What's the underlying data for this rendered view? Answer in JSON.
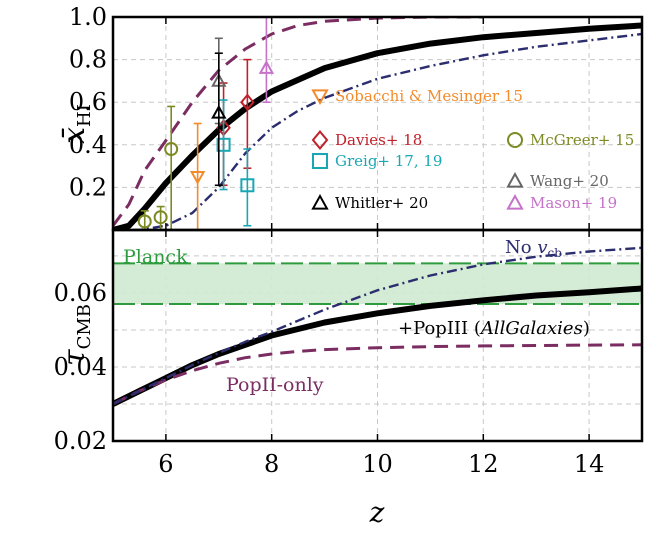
{
  "chart_data": [
    {
      "type": "line",
      "panel": "top",
      "ylabel": "x̄HI",
      "ylabel_main": "x̄",
      "ylabel_sub": "HI",
      "xlim": [
        5,
        15
      ],
      "ylim": [
        0,
        1.0
      ],
      "yticks": [
        0.2,
        0.4,
        0.6,
        0.8,
        1.0
      ],
      "ytick_labels": [
        "0.2",
        "0.4",
        "0.6",
        "0.8",
        "1.0"
      ],
      "xticks": [
        6,
        8,
        10,
        12,
        14
      ],
      "grid": true,
      "legend_position": "lower-right",
      "series": [
        {
          "style": "thick-solid",
          "color": "#000000",
          "x": [
            5.0,
            5.3,
            5.6,
            6.0,
            6.5,
            7.0,
            7.5,
            8.0,
            9.0,
            10.0,
            11.0,
            12.0,
            13.0,
            14.0,
            15.0
          ],
          "y": [
            0.0,
            0.02,
            0.1,
            0.22,
            0.35,
            0.47,
            0.57,
            0.65,
            0.76,
            0.83,
            0.875,
            0.905,
            0.925,
            0.945,
            0.96
          ]
        },
        {
          "style": "dashed",
          "color": "#7b2d62",
          "x": [
            5.0,
            5.3,
            5.6,
            6.0,
            6.5,
            7.0,
            7.5,
            8.0,
            8.5,
            9.0,
            10.0,
            11.0,
            12.0
          ],
          "y": [
            0.02,
            0.12,
            0.28,
            0.42,
            0.6,
            0.75,
            0.85,
            0.92,
            0.96,
            0.98,
            0.995,
            1.0,
            1.0
          ]
        },
        {
          "style": "dash-dot",
          "color": "#2b2d6e",
          "x": [
            5.0,
            5.5,
            6.0,
            6.5,
            7.0,
            7.5,
            8.0,
            8.5,
            9.0,
            10.0,
            11.0,
            12.0,
            13.0,
            14.0,
            15.0
          ],
          "y": [
            0.0,
            0.0,
            0.02,
            0.08,
            0.2,
            0.36,
            0.48,
            0.56,
            0.62,
            0.71,
            0.77,
            0.82,
            0.86,
            0.89,
            0.92
          ]
        }
      ],
      "observations": [
        {
          "label": "Sobacchi & Mesinger 15",
          "color": "#f28b2a",
          "marker": "triangle-down",
          "points": [
            {
              "x": 6.6,
              "y": 0.25,
              "lo": 0.0,
              "hi": 0.5
            }
          ]
        },
        {
          "label": "Davies+ 18",
          "color": "#c0202a",
          "marker": "diamond",
          "points": [
            {
              "x": 7.09,
              "y": 0.48,
              "lo": 0.21,
              "hi": 0.69
            },
            {
              "x": 7.54,
              "y": 0.6,
              "lo": 0.29,
              "hi": 0.8
            }
          ]
        },
        {
          "label": "McGreer+ 15",
          "color": "#7d8a24",
          "marker": "circle",
          "points": [
            {
              "x": 5.6,
              "y": 0.04,
              "lo": 0.0,
              "hi": 0.09
            },
            {
              "x": 5.9,
              "y": 0.06,
              "lo": 0.0,
              "hi": 0.11
            },
            {
              "x": 6.1,
              "y": 0.38,
              "lo": 0.0,
              "hi": 0.58
            }
          ]
        },
        {
          "label": "Greig+ 17, 19",
          "color": "#1aa7b5",
          "marker": "square",
          "points": [
            {
              "x": 7.09,
              "y": 0.4,
              "lo": 0.19,
              "hi": 0.61
            },
            {
              "x": 7.54,
              "y": 0.21,
              "lo": 0.02,
              "hi": 0.38
            }
          ]
        },
        {
          "label": "Wang+ 20",
          "color": "#666666",
          "marker": "triangle-up",
          "points": [
            {
              "x": 7.0,
              "y": 0.7,
              "lo": 0.5,
              "hi": 0.9
            }
          ]
        },
        {
          "label": "Whitler+ 20",
          "color": "#000000",
          "marker": "triangle-up",
          "points": [
            {
              "x": 7.0,
              "y": 0.55,
              "lo": 0.21,
              "hi": 0.83
            }
          ]
        },
        {
          "label": "Mason+ 19",
          "color": "#c572c8",
          "marker": "triangle-up",
          "points": [
            {
              "x": 7.9,
              "y": 0.76,
              "lo": 0.6,
              "hi": 1.0
            }
          ]
        }
      ]
    },
    {
      "type": "line",
      "panel": "bottom",
      "ylabel": "τCMB",
      "ylabel_main": "τ",
      "ylabel_sub": "CMB",
      "xlabel": "z",
      "xlim": [
        5,
        15
      ],
      "ylim": [
        0.02,
        0.077
      ],
      "yticks": [
        0.02,
        0.04,
        0.06
      ],
      "ytick_labels": [
        "0.02",
        "0.04",
        "0.06"
      ],
      "xticks": [
        6,
        8,
        10,
        12,
        14
      ],
      "xtick_labels": [
        "6",
        "8",
        "10",
        "12",
        "14"
      ],
      "grid": true,
      "planck_band": {
        "label": "Planck",
        "low": 0.057,
        "high": 0.068,
        "color": "#2e9c3e",
        "fill": "#cfead0"
      },
      "series": [
        {
          "label": "+PopIII (AllGalaxies)",
          "label_pre": "+PopIII (",
          "label_em": "AllGalaxies",
          "label_post": ")",
          "style": "thick-solid",
          "color": "#000000",
          "x": [
            5.0,
            5.5,
            6.0,
            6.5,
            7.0,
            7.5,
            8.0,
            9.0,
            10.0,
            11.0,
            12.0,
            13.0,
            14.0,
            15.0
          ],
          "y": [
            0.03,
            0.0335,
            0.037,
            0.0405,
            0.0435,
            0.046,
            0.0485,
            0.052,
            0.0545,
            0.0565,
            0.058,
            0.0593,
            0.0602,
            0.0612
          ]
        },
        {
          "label": "PopII-only",
          "style": "dashed",
          "color": "#7b2d62",
          "x": [
            5.0,
            5.5,
            6.0,
            6.5,
            7.0,
            7.5,
            8.0,
            8.5,
            9.0,
            10.0,
            11.0,
            12.0,
            13.0,
            14.0,
            15.0
          ],
          "y": [
            0.03,
            0.0335,
            0.0365,
            0.039,
            0.041,
            0.0425,
            0.0435,
            0.0442,
            0.0447,
            0.0452,
            0.0455,
            0.0457,
            0.0458,
            0.0459,
            0.046
          ]
        },
        {
          "label": "No vcb",
          "label_pre": "No ",
          "label_var": "v",
          "label_sub": "cb",
          "style": "dash-dot",
          "color": "#2b2d6e",
          "x": [
            5.0,
            5.5,
            6.0,
            6.5,
            7.0,
            7.5,
            8.0,
            8.5,
            9.0,
            10.0,
            11.0,
            12.0,
            13.0,
            14.0,
            15.0
          ],
          "y": [
            0.03,
            0.0335,
            0.037,
            0.0405,
            0.0438,
            0.0468,
            0.0495,
            0.0525,
            0.0555,
            0.0607,
            0.0647,
            0.0677,
            0.0698,
            0.0712,
            0.0722
          ]
        }
      ]
    }
  ]
}
